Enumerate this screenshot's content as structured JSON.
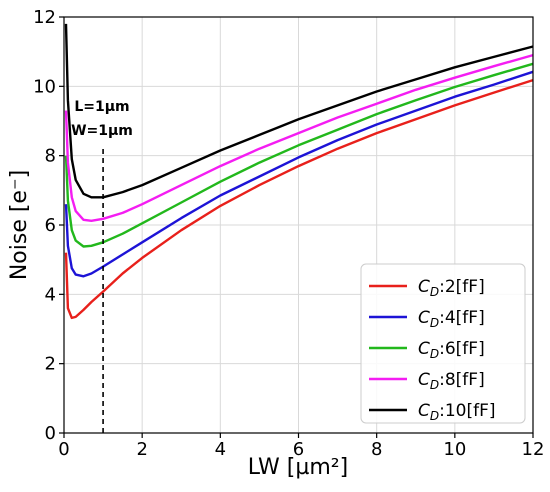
{
  "chart_data": {
    "type": "line",
    "xlabel": "LW [µm²]",
    "ylabel": "Noise [e⁻]",
    "xlim": [
      0,
      12
    ],
    "ylim": [
      0,
      12
    ],
    "xticks": [
      0,
      2,
      4,
      6,
      8,
      10,
      12
    ],
    "yticks": [
      0,
      2,
      4,
      6,
      8,
      10,
      12
    ],
    "grid": true,
    "legend_position": "lower-right",
    "annotation": {
      "lines": [
        "L=1µm",
        "W=1µm"
      ],
      "x": 1,
      "y_range": [
        0,
        8.2
      ],
      "style": "dashed"
    },
    "series": [
      {
        "name": "C_D:2[fF]",
        "legend_main": "C",
        "legend_sub": "D",
        "legend_rest": ":2[fF]",
        "color": "#e8201b",
        "x": [
          0.05,
          0.1,
          0.2,
          0.3,
          0.5,
          0.7,
          1,
          1.5,
          2,
          3,
          4,
          5,
          6,
          7,
          8,
          9,
          10,
          11,
          12
        ],
        "y": [
          5.2,
          3.6,
          3.32,
          3.35,
          3.55,
          3.78,
          4.08,
          4.6,
          5.05,
          5.85,
          6.55,
          7.15,
          7.7,
          8.2,
          8.65,
          9.05,
          9.45,
          9.82,
          10.18
        ]
      },
      {
        "name": "C_D:4[fF]",
        "legend_main": "C",
        "legend_sub": "D",
        "legend_rest": ":4[fF]",
        "color": "#1d13d6",
        "x": [
          0.05,
          0.1,
          0.2,
          0.3,
          0.5,
          0.7,
          1,
          1.5,
          2,
          3,
          4,
          5,
          6,
          7,
          8,
          9,
          10,
          11,
          12
        ],
        "y": [
          6.6,
          5.4,
          4.75,
          4.57,
          4.52,
          4.6,
          4.8,
          5.15,
          5.5,
          6.2,
          6.85,
          7.4,
          7.95,
          8.45,
          8.9,
          9.3,
          9.7,
          10.05,
          10.42
        ]
      },
      {
        "name": "C_D:6[fF]",
        "legend_main": "C",
        "legend_sub": "D",
        "legend_rest": ":6[fF]",
        "color": "#22b81c",
        "x": [
          0.05,
          0.1,
          0.2,
          0.3,
          0.5,
          0.7,
          1,
          1.5,
          2,
          3,
          4,
          5,
          6,
          7,
          8,
          9,
          10,
          11,
          12
        ],
        "y": [
          8.0,
          6.7,
          5.85,
          5.55,
          5.38,
          5.4,
          5.5,
          5.75,
          6.05,
          6.65,
          7.25,
          7.8,
          8.3,
          8.75,
          9.2,
          9.6,
          9.98,
          10.32,
          10.65
        ]
      },
      {
        "name": "C_D:8[fF]",
        "legend_main": "C",
        "legend_sub": "D",
        "legend_rest": ":8[fF]",
        "color": "#f41df2",
        "x": [
          0.05,
          0.1,
          0.2,
          0.3,
          0.5,
          0.7,
          1,
          1.5,
          2,
          3,
          4,
          5,
          6,
          7,
          8,
          9,
          10,
          11,
          12
        ],
        "y": [
          9.3,
          7.8,
          6.8,
          6.4,
          6.15,
          6.12,
          6.18,
          6.35,
          6.6,
          7.15,
          7.7,
          8.2,
          8.65,
          9.1,
          9.5,
          9.9,
          10.25,
          10.58,
          10.9
        ]
      },
      {
        "name": "C_D:10[fF]",
        "legend_main": "C",
        "legend_sub": "D",
        "legend_rest": ":10[fF]",
        "color": "#000000",
        "x": [
          0.05,
          0.1,
          0.2,
          0.3,
          0.5,
          0.7,
          1,
          1.5,
          2,
          3,
          4,
          5,
          6,
          7,
          8,
          9,
          10,
          11,
          12
        ],
        "y": [
          11.8,
          9.6,
          7.9,
          7.3,
          6.9,
          6.8,
          6.8,
          6.95,
          7.15,
          7.65,
          8.15,
          8.6,
          9.05,
          9.45,
          9.85,
          10.2,
          10.55,
          10.85,
          11.15
        ]
      }
    ]
  }
}
